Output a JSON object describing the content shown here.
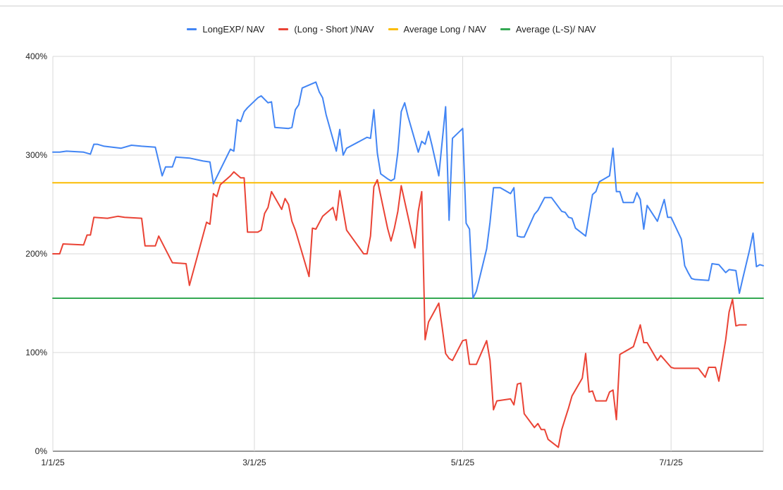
{
  "chart_data": {
    "type": "line",
    "x_axis": {
      "tick_labels": [
        "1/1/25",
        "3/1/25",
        "5/1/25",
        "7/1/25"
      ]
    },
    "y_axis": {
      "tick_labels": [
        "0%",
        "100%",
        "200%",
        "300%",
        "400%"
      ],
      "range": [
        0,
        400
      ],
      "unit": "%"
    },
    "grid": true,
    "legend_position": "top",
    "series": [
      {
        "name": "LongEXP/ NAV",
        "color": "#4285f4",
        "points": [
          [
            "1/1/25",
            303
          ],
          [
            "1/3/25",
            303
          ],
          [
            "1/5/25",
            304
          ],
          [
            "1/10/25",
            303
          ],
          [
            "1/12/25",
            301
          ],
          [
            "1/13/25",
            311
          ],
          [
            "1/14/25",
            311
          ],
          [
            "1/16/25",
            309
          ],
          [
            "1/21/25",
            307
          ],
          [
            "1/24/25",
            310
          ],
          [
            "1/27/25",
            309
          ],
          [
            "1/31/25",
            308
          ],
          [
            "2/2/25",
            279
          ],
          [
            "2/3/25",
            288
          ],
          [
            "2/5/25",
            288
          ],
          [
            "2/6/25",
            298
          ],
          [
            "2/10/25",
            297
          ],
          [
            "2/14/25",
            294
          ],
          [
            "2/16/25",
            293
          ],
          [
            "2/17/25",
            271
          ],
          [
            "2/18/25",
            278
          ],
          [
            "2/22/25",
            306
          ],
          [
            "2/23/25",
            304
          ],
          [
            "2/24/25",
            336
          ],
          [
            "2/25/25",
            334
          ],
          [
            "2/26/25",
            344
          ],
          [
            "2/27/25",
            348
          ],
          [
            "3/2/25",
            358
          ],
          [
            "3/3/25",
            360
          ],
          [
            "3/5/25",
            353
          ],
          [
            "3/6/25",
            354
          ],
          [
            "3/7/25",
            328
          ],
          [
            "3/11/25",
            327
          ],
          [
            "3/12/25",
            328
          ],
          [
            "3/13/25",
            346
          ],
          [
            "3/14/25",
            351
          ],
          [
            "3/15/25",
            368
          ],
          [
            "3/19/25",
            374
          ],
          [
            "3/20/25",
            364
          ],
          [
            "3/21/25",
            358
          ],
          [
            "3/22/25",
            341
          ],
          [
            "3/25/25",
            304
          ],
          [
            "3/26/25",
            326
          ],
          [
            "3/27/25",
            300
          ],
          [
            "3/28/25",
            307
          ],
          [
            "4/3/25",
            318
          ],
          [
            "4/4/25",
            317
          ],
          [
            "4/5/25",
            346
          ],
          [
            "4/6/25",
            302
          ],
          [
            "4/7/25",
            281
          ],
          [
            "4/9/25",
            276
          ],
          [
            "4/10/25",
            274
          ],
          [
            "4/11/25",
            276
          ],
          [
            "4/12/25",
            303
          ],
          [
            "4/13/25",
            344
          ],
          [
            "4/14/25",
            353
          ],
          [
            "4/15/25",
            339
          ],
          [
            "4/18/25",
            303
          ],
          [
            "4/19/25",
            314
          ],
          [
            "4/20/25",
            311
          ],
          [
            "4/21/25",
            324
          ],
          [
            "4/22/25",
            310
          ],
          [
            "4/24/25",
            279
          ],
          [
            "4/26/25",
            349
          ],
          [
            "4/27/25",
            234
          ],
          [
            "4/28/25",
            317
          ],
          [
            "5/1/25",
            327
          ],
          [
            "5/2/25",
            231
          ],
          [
            "5/3/25",
            225
          ],
          [
            "5/4/25",
            155
          ],
          [
            "5/5/25",
            162
          ],
          [
            "5/8/25",
            205
          ],
          [
            "5/9/25",
            232
          ],
          [
            "5/10/25",
            267
          ],
          [
            "5/12/25",
            267
          ],
          [
            "5/15/25",
            261
          ],
          [
            "5/16/25",
            267
          ],
          [
            "5/17/25",
            218
          ],
          [
            "5/18/25",
            217
          ],
          [
            "5/19/25",
            217
          ],
          [
            "5/22/25",
            240
          ],
          [
            "5/23/25",
            244
          ],
          [
            "5/25/25",
            257
          ],
          [
            "5/27/25",
            257
          ],
          [
            "5/30/25",
            243
          ],
          [
            "5/31/25",
            242
          ],
          [
            "6/1/25",
            237
          ],
          [
            "6/2/25",
            236
          ],
          [
            "6/3/25",
            226
          ],
          [
            "6/6/25",
            218
          ],
          [
            "6/8/25",
            260
          ],
          [
            "6/9/25",
            263
          ],
          [
            "6/10/25",
            273
          ],
          [
            "6/13/25",
            279
          ],
          [
            "6/14/25",
            307
          ],
          [
            "6/15/25",
            263
          ],
          [
            "6/16/25",
            263
          ],
          [
            "6/17/25",
            252
          ],
          [
            "6/20/25",
            252
          ],
          [
            "6/21/25",
            262
          ],
          [
            "6/22/25",
            255
          ],
          [
            "6/23/25",
            225
          ],
          [
            "6/24/25",
            249
          ],
          [
            "6/27/25",
            233
          ],
          [
            "6/29/25",
            255
          ],
          [
            "6/30/25",
            237
          ],
          [
            "7/1/25",
            237
          ],
          [
            "7/4/25",
            215
          ],
          [
            "7/5/25",
            188
          ],
          [
            "7/6/25",
            181
          ],
          [
            "7/7/25",
            175
          ],
          [
            "7/8/25",
            174
          ],
          [
            "7/12/25",
            173
          ],
          [
            "7/13/25",
            190
          ],
          [
            "7/15/25",
            189
          ],
          [
            "7/17/25",
            181
          ],
          [
            "7/18/25",
            184
          ],
          [
            "7/20/25",
            183
          ],
          [
            "7/21/25",
            160
          ],
          [
            "7/22/25",
            175
          ],
          [
            "7/24/25",
            204
          ],
          [
            "7/25/25",
            221
          ],
          [
            "7/26/25",
            187
          ],
          [
            "7/27/25",
            189
          ],
          [
            "7/28/25",
            188
          ]
        ]
      },
      {
        "name": "(Long - Short )/NAV",
        "color": "#ea4335",
        "points": [
          [
            "1/1/25",
            200
          ],
          [
            "1/3/25",
            200
          ],
          [
            "1/4/25",
            210
          ],
          [
            "1/10/25",
            209
          ],
          [
            "1/11/25",
            219
          ],
          [
            "1/12/25",
            219
          ],
          [
            "1/13/25",
            237
          ],
          [
            "1/17/25",
            236
          ],
          [
            "1/20/25",
            238
          ],
          [
            "1/22/25",
            237
          ],
          [
            "1/27/25",
            236
          ],
          [
            "1/28/25",
            208
          ],
          [
            "1/31/25",
            208
          ],
          [
            "2/1/25",
            218
          ],
          [
            "2/5/25",
            191
          ],
          [
            "2/9/25",
            190
          ],
          [
            "2/10/25",
            168
          ],
          [
            "2/15/25",
            232
          ],
          [
            "2/16/25",
            230
          ],
          [
            "2/17/25",
            261
          ],
          [
            "2/18/25",
            258
          ],
          [
            "2/19/25",
            270
          ],
          [
            "2/22/25",
            279
          ],
          [
            "2/23/25",
            283
          ],
          [
            "2/25/25",
            277
          ],
          [
            "2/26/25",
            277
          ],
          [
            "2/27/25",
            222
          ],
          [
            "3/2/25",
            222
          ],
          [
            "3/3/25",
            224
          ],
          [
            "3/4/25",
            241
          ],
          [
            "3/5/25",
            247
          ],
          [
            "3/6/25",
            263
          ],
          [
            "3/9/25",
            245
          ],
          [
            "3/10/25",
            256
          ],
          [
            "3/11/25",
            250
          ],
          [
            "3/12/25",
            233
          ],
          [
            "3/13/25",
            224
          ],
          [
            "3/17/25",
            177
          ],
          [
            "3/18/25",
            226
          ],
          [
            "3/19/25",
            225
          ],
          [
            "3/21/25",
            238
          ],
          [
            "3/24/25",
            247
          ],
          [
            "3/25/25",
            234
          ],
          [
            "3/26/25",
            264
          ],
          [
            "3/28/25",
            224
          ],
          [
            "4/2/25",
            200
          ],
          [
            "4/3/25",
            200
          ],
          [
            "4/4/25",
            218
          ],
          [
            "4/5/25",
            268
          ],
          [
            "4/6/25",
            275
          ],
          [
            "4/9/25",
            226
          ],
          [
            "4/10/25",
            213
          ],
          [
            "4/11/25",
            226
          ],
          [
            "4/12/25",
            243
          ],
          [
            "4/13/25",
            269
          ],
          [
            "4/17/25",
            206
          ],
          [
            "4/18/25",
            243
          ],
          [
            "4/19/25",
            263
          ],
          [
            "4/20/25",
            113
          ],
          [
            "4/21/25",
            131
          ],
          [
            "4/24/25",
            150
          ],
          [
            "4/25/25",
            125
          ],
          [
            "4/26/25",
            99
          ],
          [
            "4/27/25",
            94
          ],
          [
            "4/28/25",
            92
          ],
          [
            "5/1/25",
            112
          ],
          [
            "5/2/25",
            113
          ],
          [
            "5/3/25",
            88
          ],
          [
            "5/5/25",
            88
          ],
          [
            "5/8/25",
            112
          ],
          [
            "5/9/25",
            92
          ],
          [
            "5/10/25",
            42
          ],
          [
            "5/11/25",
            51
          ],
          [
            "5/15/25",
            53
          ],
          [
            "5/16/25",
            47
          ],
          [
            "5/17/25",
            68
          ],
          [
            "5/18/25",
            69
          ],
          [
            "5/19/25",
            38
          ],
          [
            "5/22/25",
            24
          ],
          [
            "5/23/25",
            28
          ],
          [
            "5/24/25",
            22
          ],
          [
            "5/25/25",
            22
          ],
          [
            "5/26/25",
            12
          ],
          [
            "5/29/25",
            4
          ],
          [
            "5/30/25",
            22
          ],
          [
            "5/31/25",
            33
          ],
          [
            "6/1/25",
            44
          ],
          [
            "6/2/25",
            56
          ],
          [
            "6/5/25",
            74
          ],
          [
            "6/6/25",
            99
          ],
          [
            "6/7/25",
            60
          ],
          [
            "6/8/25",
            61
          ],
          [
            "6/9/25",
            51
          ],
          [
            "6/12/25",
            51
          ],
          [
            "6/13/25",
            60
          ],
          [
            "6/14/25",
            62
          ],
          [
            "6/15/25",
            32
          ],
          [
            "6/16/25",
            98
          ],
          [
            "6/20/25",
            106
          ],
          [
            "6/22/25",
            128
          ],
          [
            "6/23/25",
            110
          ],
          [
            "6/24/25",
            110
          ],
          [
            "6/27/25",
            92
          ],
          [
            "6/28/25",
            97
          ],
          [
            "7/1/25",
            85
          ],
          [
            "7/2/25",
            84
          ],
          [
            "7/6/25",
            84
          ],
          [
            "7/9/25",
            84
          ],
          [
            "7/11/25",
            75
          ],
          [
            "7/12/25",
            85
          ],
          [
            "7/14/25",
            85
          ],
          [
            "7/15/25",
            71
          ],
          [
            "7/17/25",
            113
          ],
          [
            "7/18/25",
            141
          ],
          [
            "7/19/25",
            154
          ],
          [
            "7/20/25",
            127
          ],
          [
            "7/21/25",
            128
          ],
          [
            "7/23/25",
            128
          ]
        ]
      },
      {
        "name": "Average Long / NAV",
        "color": "#fbbc04",
        "points": [
          [
            "1/1/25",
            272
          ],
          [
            "7/28/25",
            272
          ]
        ]
      },
      {
        "name": "Average (L-S)/ NAV",
        "color": "#34a853",
        "points": [
          [
            "1/1/25",
            155
          ],
          [
            "7/28/25",
            155
          ]
        ]
      }
    ]
  }
}
